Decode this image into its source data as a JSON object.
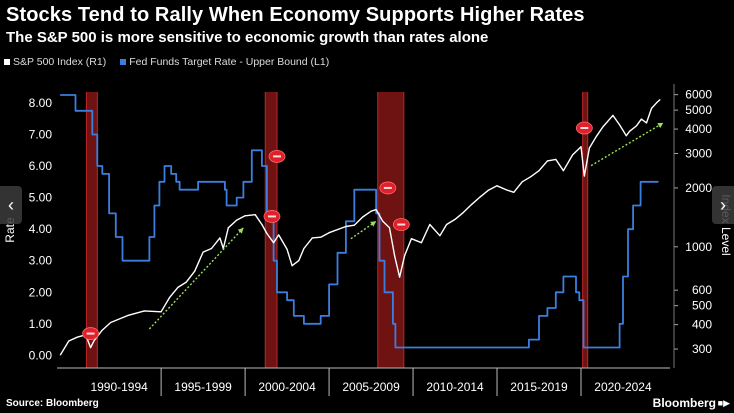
{
  "header": {
    "title": "Stocks Tend to Rally When Economy Supports Higher Rates",
    "subtitle": "The S&P 500 is more sensitive to economic growth than rates alone"
  },
  "legend": {
    "sp500_label": "S&P 500 Index (R1)",
    "fed_label": "Fed Funds Target Rate - Upper Bound (L1)"
  },
  "footer": {
    "source": "Source: Bloomberg",
    "brand": "Bloomberg",
    "brand_mark": "■▶"
  },
  "nav": {
    "prev_icon": "‹",
    "next_icon": "›"
  },
  "colors": {
    "sp500": "#ffffff",
    "fed": "#3a7fe0",
    "recession": "#7a1414",
    "trend": "#9be05a",
    "marker": "#e0202a"
  },
  "chart_data": {
    "type": "line",
    "title": "Stocks Tend to Rally When Economy Supports Higher Rates",
    "subtitle": "The S&P 500 is more sensitive to economic growth than rates alone",
    "x_range": [
      1988.8,
      2025.3
    ],
    "x_period_labels": [
      {
        "label": "1990-1994",
        "center": 1992.5
      },
      {
        "label": "1995-1999",
        "center": 1997.5
      },
      {
        "label": "2000-2004",
        "center": 2002.5
      },
      {
        "label": "2005-2009",
        "center": 2007.5
      },
      {
        "label": "2010-2014",
        "center": 2012.5
      },
      {
        "label": "2015-2019",
        "center": 2017.5
      },
      {
        "label": "2020-2024",
        "center": 2022.5
      }
    ],
    "x_period_dividers": [
      1995,
      2000,
      2005,
      2010,
      2015,
      2020
    ],
    "left_axis": {
      "label": "Rate",
      "min": -0.4,
      "max": 8.6,
      "ticks": [
        "0.00",
        "1.00",
        "2.00",
        "3.00",
        "4.00",
        "5.00",
        "6.00",
        "7.00",
        "8.00"
      ]
    },
    "right_axis": {
      "label": "Index Level",
      "scale": "log",
      "min": 240,
      "max": 6800,
      "ticks": [
        300,
        400,
        500,
        600,
        1000,
        2000,
        3000,
        4000,
        5000,
        6000
      ]
    },
    "recessions": [
      [
        1990.55,
        1991.2
      ],
      [
        2001.2,
        2001.9
      ],
      [
        2007.9,
        2009.45
      ],
      [
        2020.1,
        2020.4
      ]
    ],
    "series": [
      {
        "name": "Fed Funds Target Rate - Upper Bound (L1)",
        "axis": "left",
        "points": [
          [
            1989.0,
            8.25
          ],
          [
            1989.5,
            8.25
          ],
          [
            1989.9,
            7.75
          ],
          [
            1990.6,
            7.75
          ],
          [
            1990.9,
            7.0
          ],
          [
            1991.2,
            6.0
          ],
          [
            1991.5,
            5.75
          ],
          [
            1991.9,
            4.5
          ],
          [
            1992.3,
            3.75
          ],
          [
            1992.7,
            3.0
          ],
          [
            1993.5,
            3.0
          ],
          [
            1994.0,
            3.0
          ],
          [
            1994.3,
            3.75
          ],
          [
            1994.6,
            4.75
          ],
          [
            1994.9,
            5.5
          ],
          [
            1995.2,
            6.0
          ],
          [
            1995.6,
            5.75
          ],
          [
            1995.9,
            5.5
          ],
          [
            1996.1,
            5.25
          ],
          [
            1997.2,
            5.5
          ],
          [
            1998.7,
            5.5
          ],
          [
            1998.8,
            5.25
          ],
          [
            1998.9,
            4.75
          ],
          [
            1999.5,
            5.0
          ],
          [
            1999.9,
            5.5
          ],
          [
            2000.4,
            6.5
          ],
          [
            2000.9,
            6.5
          ],
          [
            2001.0,
            6.0
          ],
          [
            2001.3,
            4.5
          ],
          [
            2001.7,
            3.0
          ],
          [
            2001.9,
            2.0
          ],
          [
            2002.5,
            1.75
          ],
          [
            2002.9,
            1.25
          ],
          [
            2003.5,
            1.0
          ],
          [
            2004.4,
            1.0
          ],
          [
            2004.5,
            1.25
          ],
          [
            2005.0,
            2.25
          ],
          [
            2005.5,
            3.25
          ],
          [
            2006.0,
            4.25
          ],
          [
            2006.5,
            5.25
          ],
          [
            2007.6,
            5.25
          ],
          [
            2007.8,
            4.5
          ],
          [
            2008.0,
            3.0
          ],
          [
            2008.3,
            2.0
          ],
          [
            2008.8,
            1.0
          ],
          [
            2008.95,
            0.25
          ],
          [
            2015.9,
            0.25
          ],
          [
            2016.9,
            0.5
          ],
          [
            2017.5,
            1.25
          ],
          [
            2018.0,
            1.5
          ],
          [
            2018.5,
            2.0
          ],
          [
            2018.95,
            2.5
          ],
          [
            2019.5,
            2.5
          ],
          [
            2019.7,
            2.0
          ],
          [
            2019.9,
            1.75
          ],
          [
            2020.15,
            0.25
          ],
          [
            2022.1,
            0.25
          ],
          [
            2022.3,
            1.0
          ],
          [
            2022.5,
            2.5
          ],
          [
            2022.8,
            4.0
          ],
          [
            2023.1,
            4.75
          ],
          [
            2023.55,
            5.5
          ],
          [
            2024.6,
            5.5
          ]
        ]
      },
      {
        "name": "S&P 500 Index (R1)",
        "axis": "right",
        "points": [
          [
            1989.0,
            280
          ],
          [
            1989.5,
            330
          ],
          [
            1990.0,
            345
          ],
          [
            1990.5,
            355
          ],
          [
            1990.8,
            305
          ],
          [
            1991.0,
            330
          ],
          [
            1991.5,
            375
          ],
          [
            1992.0,
            410
          ],
          [
            1993.0,
            445
          ],
          [
            1994.0,
            470
          ],
          [
            1995.0,
            465
          ],
          [
            1995.5,
            550
          ],
          [
            1996.0,
            620
          ],
          [
            1996.5,
            660
          ],
          [
            1997.0,
            750
          ],
          [
            1997.5,
            940
          ],
          [
            1998.0,
            980
          ],
          [
            1998.5,
            1110
          ],
          [
            1998.7,
            980
          ],
          [
            1999.0,
            1250
          ],
          [
            1999.5,
            1370
          ],
          [
            2000.0,
            1440
          ],
          [
            2000.6,
            1460
          ],
          [
            2001.0,
            1300
          ],
          [
            2001.3,
            1170
          ],
          [
            2001.7,
            1050
          ],
          [
            2002.0,
            1150
          ],
          [
            2002.5,
            970
          ],
          [
            2002.8,
            800
          ],
          [
            2003.2,
            850
          ],
          [
            2003.5,
            980
          ],
          [
            2004.0,
            1110
          ],
          [
            2004.5,
            1120
          ],
          [
            2005.0,
            1180
          ],
          [
            2006.0,
            1270
          ],
          [
            2006.5,
            1290
          ],
          [
            2007.0,
            1420
          ],
          [
            2007.5,
            1520
          ],
          [
            2007.8,
            1550
          ],
          [
            2008.2,
            1350
          ],
          [
            2008.6,
            1250
          ],
          [
            2008.9,
            900
          ],
          [
            2009.2,
            700
          ],
          [
            2009.5,
            900
          ],
          [
            2009.9,
            1100
          ],
          [
            2010.5,
            1050
          ],
          [
            2011.0,
            1300
          ],
          [
            2011.6,
            1140
          ],
          [
            2012.0,
            1300
          ],
          [
            2012.5,
            1380
          ],
          [
            2013.0,
            1500
          ],
          [
            2013.5,
            1650
          ],
          [
            2014.0,
            1800
          ],
          [
            2014.5,
            1950
          ],
          [
            2015.0,
            2050
          ],
          [
            2015.6,
            1950
          ],
          [
            2016.0,
            1900
          ],
          [
            2016.5,
            2150
          ],
          [
            2017.0,
            2280
          ],
          [
            2017.5,
            2450
          ],
          [
            2018.0,
            2750
          ],
          [
            2018.5,
            2800
          ],
          [
            2018.95,
            2450
          ],
          [
            2019.5,
            2950
          ],
          [
            2020.0,
            3250
          ],
          [
            2020.2,
            2300
          ],
          [
            2020.5,
            3200
          ],
          [
            2020.9,
            3650
          ],
          [
            2021.3,
            4100
          ],
          [
            2021.9,
            4700
          ],
          [
            2022.3,
            4200
          ],
          [
            2022.7,
            3700
          ],
          [
            2022.9,
            3900
          ],
          [
            2023.3,
            4150
          ],
          [
            2023.6,
            4500
          ],
          [
            2023.9,
            4300
          ],
          [
            2024.2,
            5100
          ],
          [
            2024.5,
            5450
          ],
          [
            2024.7,
            5650
          ]
        ]
      }
    ],
    "trend_arrows": [
      {
        "from": [
          1994.3,
          380
        ],
        "to": [
          1999.9,
          1250
        ]
      },
      {
        "from": [
          2006.3,
          1100
        ],
        "to": [
          2007.8,
          1350
        ]
      },
      {
        "from": [
          2020.6,
          2600
        ],
        "to": [
          2024.9,
          4300
        ]
      }
    ],
    "markers": [
      {
        "x": 1990.8,
        "y": 360,
        "axis": "right"
      },
      {
        "x": 2001.6,
        "y": 1430,
        "axis": "right"
      },
      {
        "x": 2001.9,
        "y": 2900,
        "axis": "right"
      },
      {
        "x": 2008.5,
        "y": 2000,
        "axis": "right"
      },
      {
        "x": 2009.3,
        "y": 1300,
        "axis": "right"
      },
      {
        "x": 2020.2,
        "y": 4050,
        "axis": "right"
      }
    ]
  }
}
